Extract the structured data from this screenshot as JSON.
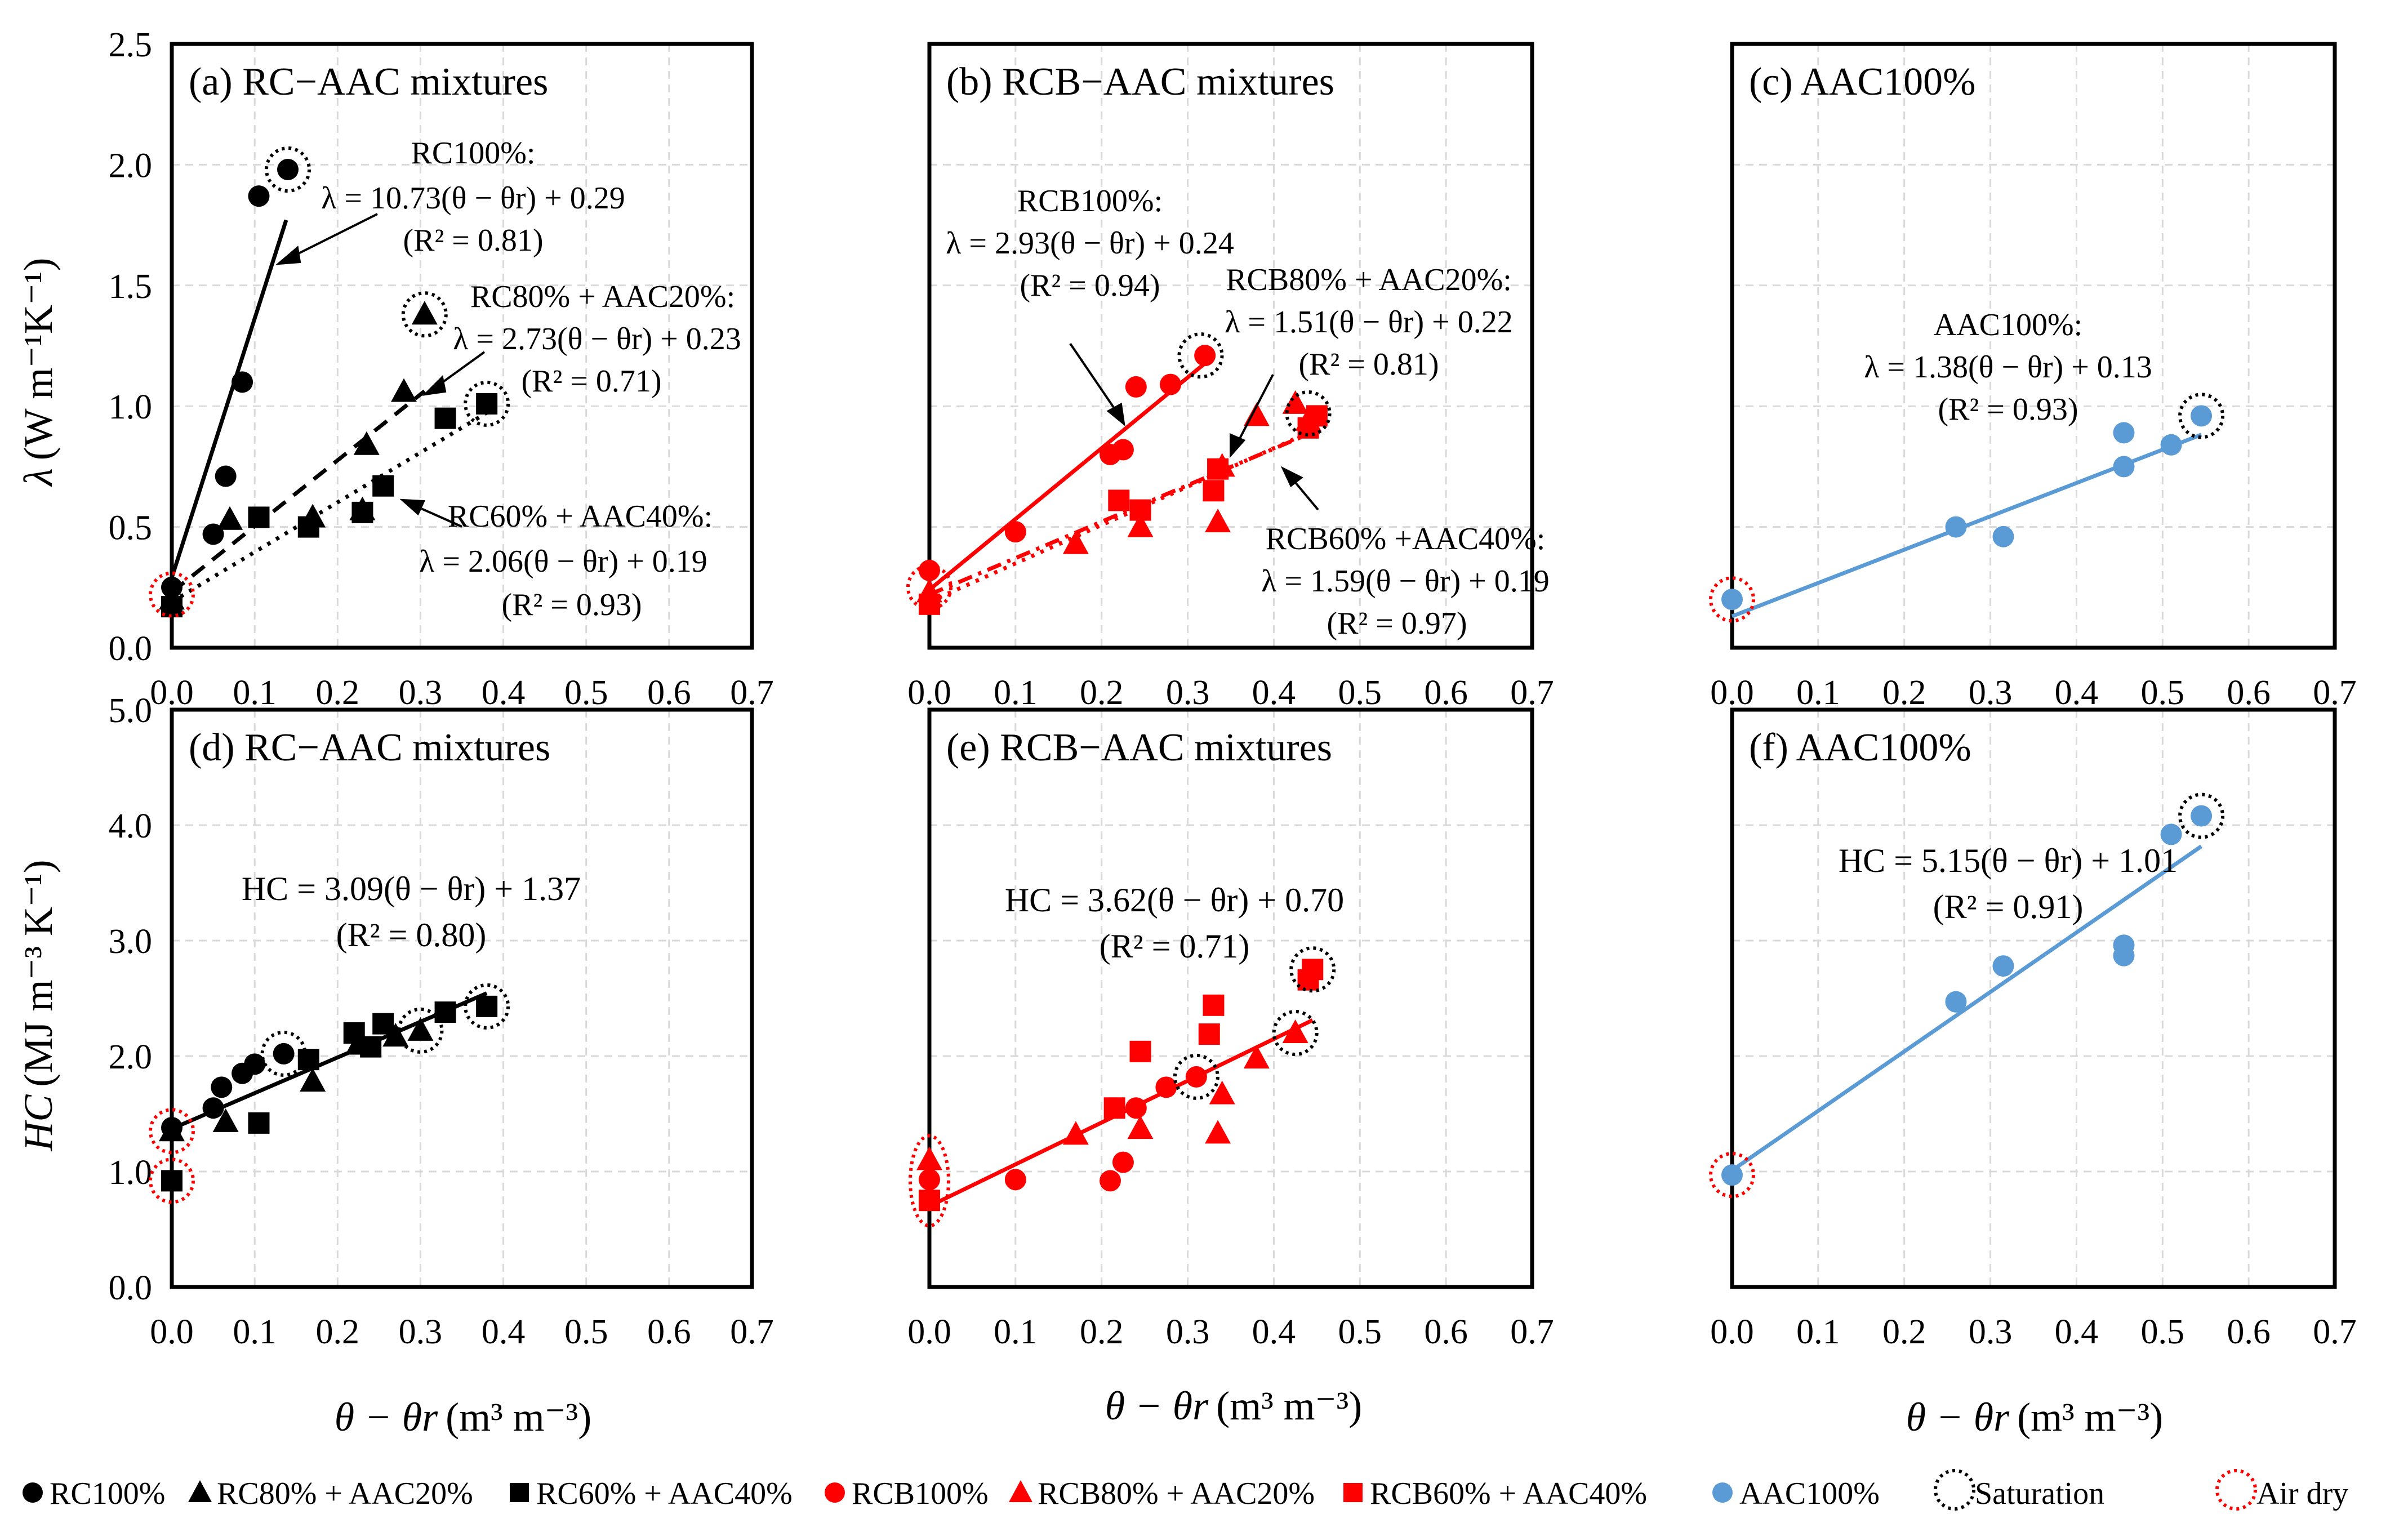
{
  "figure": {
    "colors": {
      "black": "#000000",
      "red": "#ff0000",
      "blue": "#5b9bd5",
      "grid": "#d9d9d9",
      "saturation_ring": "#000000",
      "airdry_ring": "#ff0000"
    }
  },
  "yaxis_top": {
    "label_symbol": "λ",
    "label_units": "(W m⁻¹K⁻¹)"
  },
  "yaxis_bottom": {
    "label_symbol": "HC",
    "label_units": "(MJ m⁻³ K⁻¹)"
  },
  "xaxis": {
    "label_symbol": "θ − θr",
    "label_units": "(m³ m⁻³)"
  },
  "legend": {
    "items": [
      {
        "label": "RC100%",
        "marker": "circle",
        "color": "#000000"
      },
      {
        "label": "RC80% + AAC20%",
        "marker": "triangle",
        "color": "#000000"
      },
      {
        "label": "RC60% + AAC40%",
        "marker": "square",
        "color": "#000000"
      },
      {
        "label": "RCB100%",
        "marker": "circle",
        "color": "#ff0000"
      },
      {
        "label": "RCB80% + AAC20%",
        "marker": "triangle",
        "color": "#ff0000"
      },
      {
        "label": "RCB60% + AAC40%",
        "marker": "square",
        "color": "#ff0000"
      },
      {
        "label": "AAC100%",
        "marker": "circle",
        "color": "#5b9bd5"
      },
      {
        "label": "Saturation",
        "marker": "ring-black",
        "color": "#000000"
      },
      {
        "label": "Air dry",
        "marker": "ring-red",
        "color": "#ff0000"
      }
    ]
  },
  "chart_data": [
    {
      "id": "a",
      "type": "scatter",
      "title": "(a) RC−AAC mixtures",
      "xlabel": "θ − θr (m³ m⁻³)",
      "ylabel": "λ (W m⁻¹K⁻¹)",
      "xlim": [
        0,
        0.7
      ],
      "ylim": [
        0,
        2.5
      ],
      "xticks": [
        "0.0",
        "0.1",
        "0.2",
        "0.3",
        "0.4",
        "0.5",
        "0.6",
        "0.7"
      ],
      "yticks": [
        "0.0",
        "0.5",
        "1.0",
        "1.5",
        "2.0",
        "2.5"
      ],
      "series": [
        {
          "name": "RC100%",
          "marker": "circle",
          "color": "#000000",
          "x": [
            0.0,
            0.05,
            0.065,
            0.085,
            0.105,
            0.14
          ],
          "y": [
            0.25,
            0.47,
            0.71,
            1.1,
            1.87,
            1.98
          ],
          "fit": {
            "slope": 10.73,
            "intercept": 0.29,
            "x": [
              0,
              0.138
            ],
            "style": "solid"
          }
        },
        {
          "name": "RC80% + AAC20%",
          "marker": "triangle",
          "color": "#000000",
          "x": [
            0.0,
            0.07,
            0.17,
            0.23,
            0.235,
            0.28,
            0.305
          ],
          "y": [
            0.2,
            0.53,
            0.54,
            0.57,
            0.84,
            1.06,
            1.38
          ],
          "fit": {
            "slope": 2.73,
            "intercept": 0.23,
            "x": [
              0,
              0.305
            ],
            "style": "dashed"
          }
        },
        {
          "name": "RC60% + AAC40%",
          "marker": "square",
          "color": "#000000",
          "x": [
            0.0,
            0.105,
            0.165,
            0.23,
            0.255,
            0.33,
            0.38
          ],
          "y": [
            0.17,
            0.54,
            0.5,
            0.56,
            0.67,
            0.95,
            1.01
          ],
          "fit": {
            "slope": 2.06,
            "intercept": 0.19,
            "x": [
              0,
              0.385
            ],
            "style": "dotted"
          }
        }
      ],
      "saturation": [
        [
          0.14,
          1.98
        ],
        [
          0.305,
          1.38
        ],
        [
          0.38,
          1.01
        ]
      ],
      "airdry": [
        [
          0.0,
          0.22
        ]
      ],
      "annotations": [
        {
          "name": "RC100%:",
          "eq": "λ = 10.73(θ − θr) + 0.29",
          "r2": "(R² = 0.81)"
        },
        {
          "name": "RC80% + AAC20%:",
          "eq": "λ = 2.73(θ − θr) + 0.23",
          "r2": "(R² = 0.71)"
        },
        {
          "name": "RC60% + AAC40%:",
          "eq": "λ = 2.06(θ − θr) + 0.19",
          "r2": "(R² = 0.93)"
        }
      ]
    },
    {
      "id": "b",
      "type": "scatter",
      "title": "(b) RCB−AAC mixtures",
      "xlim": [
        0,
        0.7
      ],
      "ylim": [
        0,
        2.5
      ],
      "series": [
        {
          "name": "RCB100%",
          "marker": "circle",
          "color": "#ff0000",
          "x": [
            0.0,
            0.1,
            0.21,
            0.225,
            0.24,
            0.28,
            0.32
          ],
          "y": [
            0.32,
            0.48,
            0.8,
            0.82,
            1.08,
            1.09,
            1.21
          ],
          "fit": {
            "slope": 2.93,
            "intercept": 0.24,
            "x": [
              0,
              0.32
            ],
            "style": "solid"
          }
        },
        {
          "name": "RCB80% + AAC20%",
          "marker": "triangle",
          "color": "#ff0000",
          "x": [
            0.0,
            0.17,
            0.245,
            0.335,
            0.34,
            0.38,
            0.425,
            0.44
          ],
          "y": [
            0.23,
            0.43,
            0.5,
            0.52,
            0.75,
            0.96,
            1.01,
            0.94
          ],
          "fit": {
            "slope": 1.51,
            "intercept": 0.22,
            "x": [
              0,
              0.45
            ],
            "style": "dashdot"
          }
        },
        {
          "name": "RCB60% + AAC40%",
          "marker": "square",
          "color": "#ff0000",
          "x": [
            0.0,
            0.22,
            0.245,
            0.33,
            0.335,
            0.44,
            0.45
          ],
          "y": [
            0.18,
            0.61,
            0.57,
            0.65,
            0.74,
            0.91,
            0.96
          ],
          "fit": {
            "slope": 1.59,
            "intercept": 0.19,
            "x": [
              0,
              0.45
            ],
            "style": "dotted"
          }
        }
      ],
      "saturation": [
        [
          0.315,
          1.21
        ],
        [
          0.44,
          0.97
        ]
      ],
      "airdry": [
        [
          0.0,
          0.25
        ]
      ],
      "annotations": [
        {
          "name": "RCB100%:",
          "eq": "λ = 2.93(θ − θr) + 0.24",
          "r2": "(R² = 0.94)"
        },
        {
          "name": "RCB80% + AAC20%:",
          "eq": "λ = 1.51(θ − θr) + 0.22",
          "r2": "(R² = 0.81)"
        },
        {
          "name": "RCB60% +AAC40%:",
          "eq": "λ = 1.59(θ − θr) + 0.19",
          "r2": "(R² = 0.97)"
        }
      ]
    },
    {
      "id": "c",
      "type": "scatter",
      "title": "(c) AAC100%",
      "xlim": [
        0,
        0.7
      ],
      "ylim": [
        0,
        2.5
      ],
      "series": [
        {
          "name": "AAC100%",
          "marker": "circle",
          "color": "#5b9bd5",
          "x": [
            0.0,
            0.26,
            0.315,
            0.455,
            0.455,
            0.51,
            0.545
          ],
          "y": [
            0.2,
            0.5,
            0.46,
            0.75,
            0.89,
            0.84,
            0.96
          ],
          "fit": {
            "slope": 1.38,
            "intercept": 0.13,
            "x": [
              0,
              0.545
            ],
            "style": "solid"
          }
        }
      ],
      "saturation": [
        [
          0.545,
          0.96
        ]
      ],
      "airdry": [
        [
          0.0,
          0.2
        ]
      ],
      "annotations": [
        {
          "name": "AAC100%:",
          "eq": "λ = 1.38(θ − θr) + 0.13",
          "r2": "(R² = 0.93)"
        }
      ]
    },
    {
      "id": "d",
      "type": "scatter",
      "title": "(d) RC−AAC mixtures",
      "xlabel": "θ − θr (m³ m⁻³)",
      "ylabel": "HC (MJ m⁻³ K⁻¹)",
      "xlim": [
        0,
        0.7
      ],
      "ylim": [
        0,
        5.0
      ],
      "yticks": [
        "0.0",
        "1.0",
        "2.0",
        "3.0",
        "4.0",
        "5.0"
      ],
      "series": [
        {
          "name": "RC100%",
          "marker": "circle",
          "color": "#000000",
          "x": [
            0.0,
            0.05,
            0.06,
            0.085,
            0.1,
            0.135
          ],
          "y": [
            1.38,
            1.55,
            1.73,
            1.85,
            1.93,
            2.02
          ]
        },
        {
          "name": "RC80% + AAC20%",
          "marker": "triangle",
          "color": "#000000",
          "x": [
            0.0,
            0.065,
            0.17,
            0.225,
            0.27,
            0.3
          ],
          "y": [
            1.35,
            1.43,
            1.78,
            2.1,
            2.17,
            2.22
          ]
        },
        {
          "name": "RC60% + AAC40%",
          "marker": "square",
          "color": "#000000",
          "x": [
            0.0,
            0.105,
            0.165,
            0.22,
            0.24,
            0.255,
            0.33,
            0.38
          ],
          "y": [
            0.92,
            1.42,
            1.97,
            2.2,
            2.08,
            2.28,
            2.38,
            2.43
          ]
        }
      ],
      "fits": [
        {
          "slope": 3.09,
          "intercept": 1.37,
          "x": [
            0,
            0.38
          ],
          "style": "solid",
          "color": "#000000"
        }
      ],
      "saturation": [
        [
          0.135,
          2.02
        ],
        [
          0.3,
          2.22
        ],
        [
          0.38,
          2.43
        ]
      ],
      "airdry": [
        [
          0.0,
          1.35
        ],
        [
          0.0,
          0.92
        ]
      ],
      "annotations": [
        {
          "eq": "HC = 3.09(θ − θr) + 1.37",
          "r2": "(R² = 0.80)"
        }
      ]
    },
    {
      "id": "e",
      "type": "scatter",
      "title": "(e) RCB−AAC mixtures",
      "xlim": [
        0,
        0.7
      ],
      "ylim": [
        0,
        5.0
      ],
      "series": [
        {
          "name": "RCB100%",
          "marker": "circle",
          "color": "#ff0000",
          "x": [
            0.0,
            0.1,
            0.21,
            0.225,
            0.24,
            0.275,
            0.31
          ],
          "y": [
            0.93,
            0.93,
            0.92,
            1.08,
            1.55,
            1.73,
            1.82
          ]
        },
        {
          "name": "RCB80% + AAC20%",
          "marker": "triangle",
          "color": "#ff0000",
          "x": [
            0.0,
            0.17,
            0.245,
            0.335,
            0.34,
            0.38,
            0.425
          ],
          "y": [
            1.1,
            1.32,
            1.37,
            1.33,
            1.67,
            1.98,
            2.2
          ]
        },
        {
          "name": "RCB60% + AAC40%",
          "marker": "square",
          "color": "#ff0000",
          "x": [
            0.0,
            0.215,
            0.245,
            0.325,
            0.33,
            0.44,
            0.445
          ],
          "y": [
            0.75,
            1.55,
            2.04,
            2.19,
            2.44,
            2.66,
            2.75
          ]
        }
      ],
      "fits": [
        {
          "slope": 3.62,
          "intercept": 0.7,
          "x": [
            0,
            0.445
          ],
          "style": "solid",
          "color": "#ff0000"
        }
      ],
      "saturation": [
        [
          0.31,
          1.82
        ],
        [
          0.425,
          2.2
        ],
        [
          0.445,
          2.75
        ]
      ],
      "airdry_ellipse": [
        0.0,
        0.92
      ],
      "annotations": [
        {
          "eq": "HC = 3.62(θ − θr) + 0.70",
          "r2": "(R² = 0.71)"
        }
      ]
    },
    {
      "id": "f",
      "type": "scatter",
      "title": "(f) AAC100%",
      "xlim": [
        0,
        0.7
      ],
      "ylim": [
        0,
        5.0
      ],
      "series": [
        {
          "name": "AAC100%",
          "marker": "circle",
          "color": "#5b9bd5",
          "x": [
            0.0,
            0.26,
            0.315,
            0.455,
            0.455,
            0.51,
            0.545
          ],
          "y": [
            0.97,
            2.47,
            2.78,
            2.87,
            2.96,
            3.92,
            4.08
          ]
        }
      ],
      "fits": [
        {
          "slope": 5.15,
          "intercept": 1.01,
          "x": [
            0,
            0.545
          ],
          "style": "solid",
          "color": "#5b9bd5"
        }
      ],
      "saturation": [
        [
          0.545,
          4.08
        ]
      ],
      "airdry": [
        [
          0.0,
          0.97
        ]
      ],
      "annotations": [
        {
          "eq": "HC = 5.15(θ − θr) + 1.01",
          "r2": "(R² = 0.91)"
        }
      ]
    }
  ]
}
